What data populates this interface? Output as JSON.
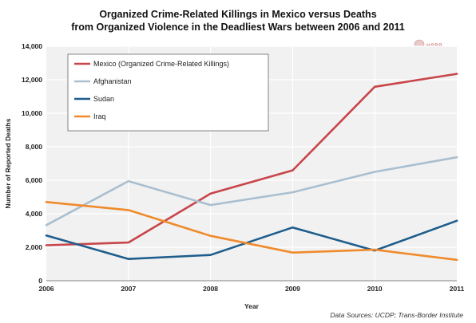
{
  "chart_data": {
    "type": "line",
    "title_line1": "Organized Crime-Related Killings in Mexico versus Deaths",
    "title_line2": "from Organized Violence in the Deadliest Wars between 2006 and 2011",
    "xlabel": "Year",
    "ylabel": "Number of Reported Deaths",
    "x": [
      "2006",
      "2007",
      "2008",
      "2009",
      "2010",
      "2011"
    ],
    "ylim": [
      0,
      14000
    ],
    "yticks": [
      "0",
      "2,000",
      "4,000",
      "6,000",
      "8,000",
      "10,000",
      "12,000",
      "14,000"
    ],
    "grid": true,
    "legend_position": "top-left",
    "series": [
      {
        "name": "Mexico (Organized Crime-Related Killings)",
        "color": "#c8454a",
        "values": [
          2120,
          2280,
          5200,
          6590,
          11580,
          12350
        ]
      },
      {
        "name": "Afghanistan",
        "color": "#a9bfd0",
        "values": [
          3320,
          5950,
          4520,
          5280,
          6500,
          7370
        ]
      },
      {
        "name": "Sudan",
        "color": "#1e5d8c",
        "values": [
          2700,
          1300,
          1540,
          3180,
          1800,
          3580
        ]
      },
      {
        "name": "Iraq",
        "color": "#ef8b2c",
        "values": [
          4700,
          4220,
          2680,
          1680,
          1850,
          1250
        ]
      }
    ]
  },
  "source_text": "Data Sources: UCDP; Trans-Border Institute",
  "logo_text": "HSRP"
}
